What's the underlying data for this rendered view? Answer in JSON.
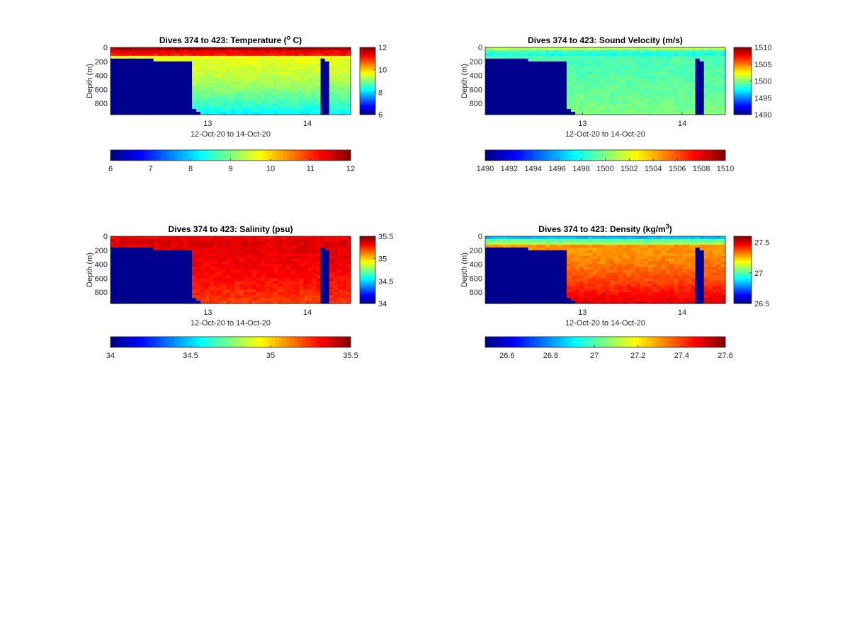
{
  "figure": {
    "background": "#ffffff",
    "axis_color": "#262626",
    "land_color": "#00008f"
  },
  "colormap": "jet",
  "chart_data": [
    {
      "id": "temperature",
      "type": "heatmap",
      "title": "Dives 374 to 423: Temperature (",
      "title_sup": "o",
      "title_tail": " C)",
      "xlabel": "12-Oct-20 to 14-Oct-20",
      "ylabel": "Depth (m)",
      "x_ticks": [
        "13",
        "14"
      ],
      "y_ticks": [
        "0",
        "200",
        "400",
        "600",
        "800"
      ],
      "ylim": [
        0,
        960
      ],
      "clim": [
        6,
        12
      ],
      "cbar_right_ticks": [
        "12",
        "10",
        "8",
        "6"
      ],
      "cbar_bottom_ticks": [
        "6",
        "7",
        "8",
        "9",
        "10",
        "11",
        "12"
      ],
      "surface_value": 11.8,
      "thermocline_value": 11.0,
      "deep_value": 9.6,
      "bottom_value": 8.2
    },
    {
      "id": "sound-velocity",
      "type": "heatmap",
      "title": "Dives 374 to 423: Sound Velocity (m/s)",
      "title_sup": "",
      "title_tail": "",
      "xlabel": "12-Oct-20 to 14-Oct-20",
      "ylabel": "Depth (m)",
      "x_ticks": [
        "13",
        "14"
      ],
      "y_ticks": [
        "0",
        "200",
        "400",
        "600",
        "800"
      ],
      "ylim": [
        0,
        960
      ],
      "clim": [
        1490,
        1510
      ],
      "cbar_right_ticks": [
        "1510",
        "1505",
        "1500",
        "1495",
        "1490"
      ],
      "cbar_bottom_ticks": [
        "1490",
        "1492",
        "1494",
        "1496",
        "1498",
        "1500",
        "1502",
        "1504",
        "1506",
        "1508",
        "1510"
      ],
      "surface_value": 1501,
      "thermocline_value": 1497,
      "deep_value": 1499,
      "bottom_value": 1500
    },
    {
      "id": "salinity",
      "type": "heatmap",
      "title": "Dives 374 to 423: Salinity (psu)",
      "title_sup": "",
      "title_tail": "",
      "xlabel": "12-Oct-20 to 14-Oct-20",
      "ylabel": "Depth (m)",
      "x_ticks": [
        "13",
        "14"
      ],
      "y_ticks": [
        "0",
        "200",
        "400",
        "600",
        "800"
      ],
      "ylim": [
        0,
        960
      ],
      "clim": [
        34,
        35.5
      ],
      "cbar_right_ticks": [
        "35.5",
        "35",
        "34.5",
        "34"
      ],
      "cbar_bottom_ticks": [
        "34",
        "34.5",
        "35",
        "35.5"
      ],
      "surface_value": 35.33,
      "thermocline_value": 35.38,
      "deep_value": 35.35,
      "bottom_value": 35.22
    },
    {
      "id": "density",
      "type": "heatmap",
      "title": "Dives 374 to 423: Density (kg/m",
      "title_sup": "3",
      "title_tail": ")",
      "xlabel": "12-Oct-20 to 14-Oct-20",
      "ylabel": "Depth (m)",
      "x_ticks": [
        "13",
        "14"
      ],
      "y_ticks": [
        "0",
        "200",
        "400",
        "600",
        "800"
      ],
      "ylim": [
        0,
        960
      ],
      "clim": [
        26.5,
        27.6
      ],
      "cbar_right_ticks": [
        "27.5",
        "27",
        "26.5"
      ],
      "cbar_bottom_ticks": [
        "26.6",
        "26.8",
        "27",
        "27.2",
        "27.4",
        "27.6"
      ],
      "surface_value": 26.85,
      "thermocline_value": 27.15,
      "deep_value": 27.3,
      "bottom_value": 27.5
    }
  ]
}
